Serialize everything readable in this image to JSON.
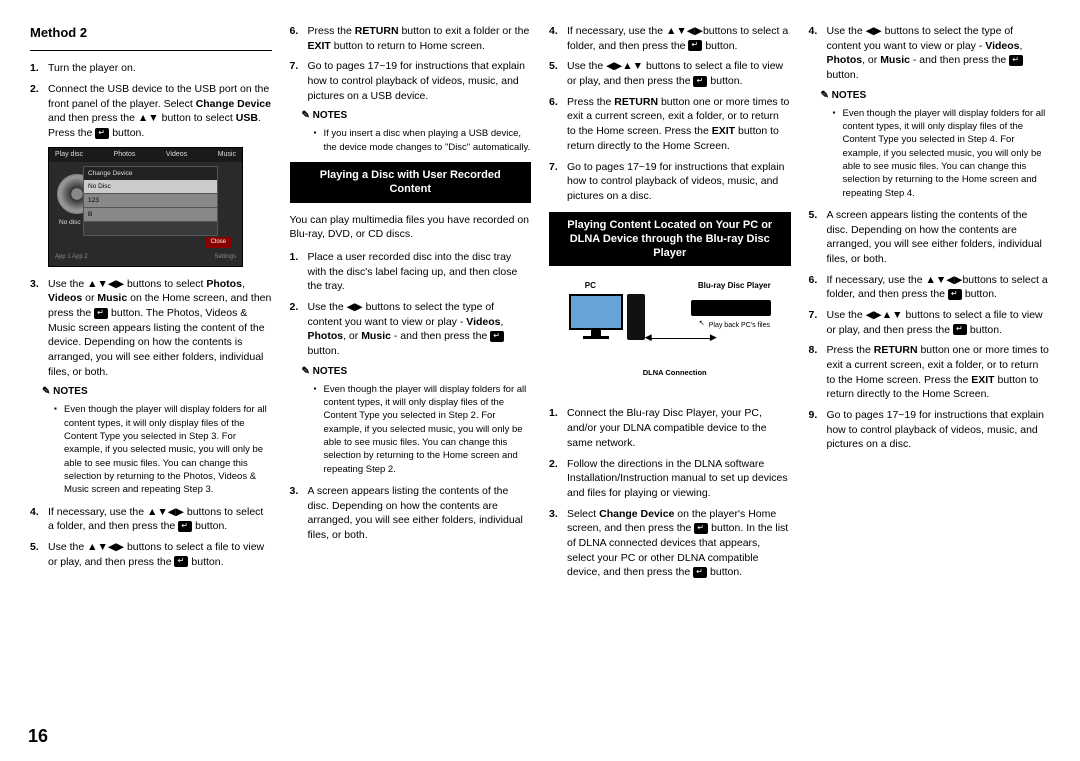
{
  "pageNumber": "16",
  "method": {
    "title": "Method 2",
    "steps": [
      "Turn the player on.",
      "Connect the USB device to the USB port on the front panel of the player. Select <b>Change Device</b> and then press the ▲▼ button to select <b>USB</b>. Press the {E} button.",
      "Use the ▲▼◀▶ buttons to select <b>Photos</b>, <b>Videos</b> or <b>Music</b> on the Home screen, and then press the {E} button. The Photos, Videos & Music screen appears listing the content of the device. Depending on how the contents is arranged, you will see either folders, individual files, or both."
    ],
    "notes1": [
      "Even though the player will display folders for all content types, it will only display files of the Content Type you selected in Step 3. For example, if you selected music, you will only be able to see music files. You can change this selection by returning to the Photos, Videos & Music screen and repeating Step 3."
    ],
    "stepsCont": [
      {
        "n": "4.",
        "t": "If necessary, use the ▲▼◀▶ buttons to select a folder, and then press the {E} button."
      },
      {
        "n": "5.",
        "t": "Use the ▲▼◀▶ buttons to select a file to view or play, and then press the {E} button."
      },
      {
        "n": "6.",
        "t": "Press the <b>RETURN</b> button to exit a folder or the <b>EXIT</b> button to return to Home screen."
      },
      {
        "n": "7.",
        "t": "Go to pages 17~19 for instructions that explain how to control playback of videos, music, and pictures on a USB device."
      }
    ],
    "notes2": [
      "If you insert a disc when playing a USB device, the device mode changes to \"Disc\" automatically."
    ]
  },
  "screenshot": {
    "tabs": [
      "Play disc",
      "Photos",
      "Videos",
      "Music"
    ],
    "modalTitle": "Change Device",
    "rows": [
      "No Disc",
      "123",
      "B"
    ],
    "close": "Close",
    "noDisc": "No disc",
    "footL": "App 1   App 2",
    "footR": "Settings"
  },
  "sectionA": {
    "title": "Playing a Disc with User Recorded Content",
    "intro": "You can play multimedia files you have recorded on Blu-ray, DVD, or CD discs.",
    "steps": [
      "Place a user recorded disc into the disc tray with the disc's label facing up, and then close the tray.",
      "Use the ◀▶ buttons to select the type of content you want to view or play - <b>Videos</b>, <b>Photos</b>, or <b>Music</b> - and then press the {E} button."
    ],
    "notes": [
      "Even though the player will display folders for all content types, it will only display files of the Content Type you selected in Step 2. For example, if you selected music, you will only be able to see music files. You can change this selection by returning to the Home screen and repeating Step 2."
    ],
    "stepsCont": [
      {
        "n": "3.",
        "t": "A screen appears listing the contents of the disc. Depending on how the contents are arranged, you will see either folders, individual files, or both."
      },
      {
        "n": "4.",
        "t": "If necessary, use the ▲▼◀▶buttons to select a folder, and then press the {E} button."
      },
      {
        "n": "5.",
        "t": "Use the ◀▶▲▼ buttons to select a file to view or play, and then press the {E} button."
      },
      {
        "n": "6.",
        "t": "Press the <b>RETURN</b> button one or more times to exit a current screen, exit a folder, or to return to the Home screen. Press the <b>EXIT</b> button to return directly to the Home Screen."
      },
      {
        "n": "7.",
        "t": "Go to pages 17~19 for instructions that explain how to control playback of videos, music, and pictures on a disc."
      }
    ]
  },
  "sectionB": {
    "title": "Playing Content Located on Your PC or DLNA Device through the Blu-ray Disc Player",
    "diagram": {
      "pc": "PC",
      "bd": "Blu-ray Disc Player",
      "play": "Play back PC's files",
      "conn": "DLNA Connection"
    },
    "steps": [
      "Connect the Blu-ray Disc Player, your PC, and/or your DLNA compatible device to the same network.",
      "Follow the directions in the DLNA software Installation/Instruction manual to set up devices and files for playing or viewing.",
      "Select <b>Change Device</b> on the player's Home screen, and then press the {E} button. In the list of DLNA connected devices that appears, select your PC or other DLNA compatible device, and then press the {E} button.",
      "Use the ◀▶ buttons to select the type of content you want to view or play - <b>Videos</b>, <b>Photos</b>, or <b>Music</b> - and then press the {E} button."
    ],
    "notes": [
      "Even though the player will display folders for all content types, it will only display files of the Content Type you selected in Step 4. For example, if you selected music, you will only be able to see music files. You can change this selection by returning to the Home screen and repeating Step 4."
    ],
    "stepsCont": [
      {
        "n": "5.",
        "t": "A screen appears listing the contents of the disc. Depending on how the contents are arranged, you will see either folders, individual files, or both."
      },
      {
        "n": "6.",
        "t": "If necessary, use the ▲▼◀▶buttons to select a folder, and then press the {E} button."
      },
      {
        "n": "7.",
        "t": "Use the ◀▶▲▼ buttons to select a file to view or play, and then press the {E} button."
      },
      {
        "n": "8.",
        "t": "Press the <b>RETURN</b> button one or more times to exit a current screen, exit a folder, or to return to the Home screen. Press the <b>EXIT</b> button to return directly to the Home Screen."
      },
      {
        "n": "9.",
        "t": "Go to pages 17~19 for instructions that explain how to control playback of videos, music, and pictures on a disc."
      }
    ]
  },
  "labels": {
    "notes": "NOTES"
  }
}
